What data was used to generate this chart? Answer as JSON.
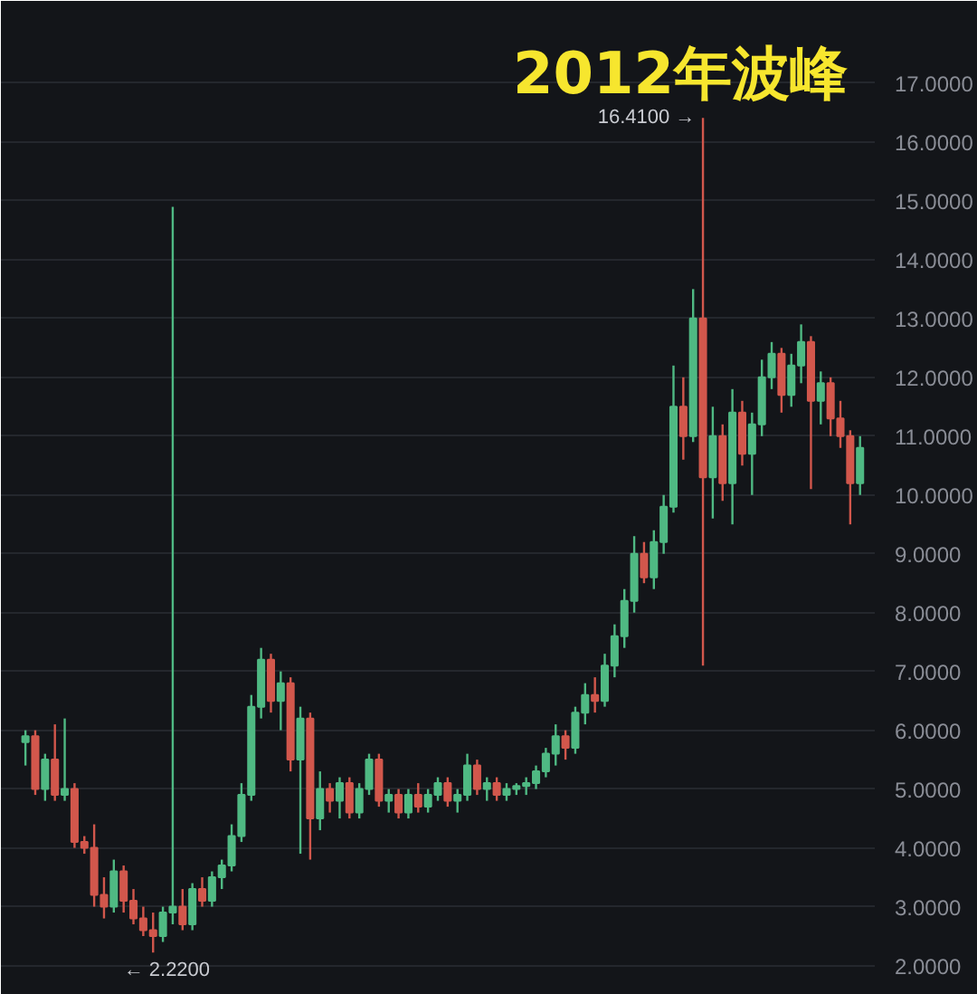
{
  "chart_data": {
    "type": "candlestick",
    "title": "2012年波峰",
    "categories": [
      null,
      null,
      null,
      null,
      null,
      null,
      null,
      null,
      null,
      null,
      null,
      null,
      null,
      null,
      null,
      null,
      null,
      null,
      null,
      null,
      null,
      null,
      null,
      null,
      null,
      null,
      null,
      null,
      null,
      null,
      null,
      null,
      null,
      null,
      null,
      null,
      null,
      null,
      null,
      null,
      null,
      null,
      null,
      null,
      null,
      null,
      null,
      null,
      null,
      null,
      null,
      null,
      null,
      null,
      null,
      null,
      null,
      null,
      null,
      null,
      null,
      null,
      null,
      null,
      null,
      null,
      null,
      null,
      null,
      null,
      null,
      null,
      null,
      null,
      null,
      null,
      null,
      null,
      null,
      null,
      null,
      null,
      null,
      null,
      null,
      null
    ],
    "ohlc": [
      [
        5.8,
        6.0,
        5.4,
        5.9
      ],
      [
        5.9,
        6.0,
        4.9,
        5.0
      ],
      [
        5.0,
        5.6,
        4.8,
        5.5
      ],
      [
        5.5,
        6.1,
        4.8,
        4.9
      ],
      [
        4.9,
        6.2,
        4.8,
        5.0
      ],
      [
        5.0,
        5.1,
        4.0,
        4.1
      ],
      [
        4.1,
        4.2,
        3.9,
        4.0
      ],
      [
        4.0,
        4.4,
        3.0,
        3.2
      ],
      [
        3.2,
        3.5,
        2.8,
        3.0
      ],
      [
        3.0,
        3.8,
        2.9,
        3.6
      ],
      [
        3.6,
        3.7,
        2.9,
        3.1
      ],
      [
        3.1,
        3.3,
        2.7,
        2.8
      ],
      [
        2.8,
        3.0,
        2.5,
        2.6
      ],
      [
        2.6,
        2.9,
        2.22,
        2.5
      ],
      [
        2.5,
        3.0,
        2.4,
        2.9
      ],
      [
        2.9,
        14.9,
        2.7,
        3.0
      ],
      [
        3.0,
        3.3,
        2.6,
        2.7
      ],
      [
        2.7,
        3.4,
        2.6,
        3.3
      ],
      [
        3.3,
        3.5,
        3.0,
        3.1
      ],
      [
        3.1,
        3.6,
        3.0,
        3.5
      ],
      [
        3.5,
        3.8,
        3.3,
        3.7
      ],
      [
        3.7,
        4.4,
        3.6,
        4.2
      ],
      [
        4.2,
        5.1,
        4.1,
        4.9
      ],
      [
        4.9,
        6.6,
        4.8,
        6.4
      ],
      [
        6.4,
        7.4,
        6.2,
        7.2
      ],
      [
        7.2,
        7.3,
        6.3,
        6.5
      ],
      [
        6.5,
        7.0,
        6.0,
        6.8
      ],
      [
        6.8,
        6.9,
        5.3,
        5.5
      ],
      [
        5.5,
        6.4,
        3.9,
        6.2
      ],
      [
        6.2,
        6.3,
        3.8,
        4.5
      ],
      [
        4.5,
        5.3,
        4.3,
        5.0
      ],
      [
        5.0,
        5.1,
        4.6,
        4.8
      ],
      [
        4.8,
        5.2,
        4.5,
        5.1
      ],
      [
        5.1,
        5.2,
        4.5,
        4.6
      ],
      [
        4.6,
        5.1,
        4.5,
        5.0
      ],
      [
        5.0,
        5.6,
        4.9,
        5.5
      ],
      [
        5.5,
        5.6,
        4.7,
        4.8
      ],
      [
        4.8,
        5.0,
        4.6,
        4.9
      ],
      [
        4.9,
        5.0,
        4.5,
        4.6
      ],
      [
        4.6,
        5.0,
        4.5,
        4.9
      ],
      [
        4.9,
        5.1,
        4.6,
        4.7
      ],
      [
        4.7,
        5.0,
        4.6,
        4.9
      ],
      [
        4.9,
        5.2,
        4.8,
        5.1
      ],
      [
        5.1,
        5.2,
        4.7,
        4.8
      ],
      [
        4.8,
        5.0,
        4.6,
        4.9
      ],
      [
        4.9,
        5.6,
        4.8,
        5.4
      ],
      [
        5.4,
        5.5,
        4.9,
        5.0
      ],
      [
        5.0,
        5.2,
        4.8,
        5.1
      ],
      [
        5.1,
        5.2,
        4.8,
        4.9
      ],
      [
        4.9,
        5.1,
        4.8,
        5.0
      ],
      [
        5.0,
        5.1,
        4.9,
        5.05
      ],
      [
        5.05,
        5.2,
        4.9,
        5.1
      ],
      [
        5.1,
        5.4,
        5.0,
        5.3
      ],
      [
        5.3,
        5.7,
        5.2,
        5.6
      ],
      [
        5.6,
        6.1,
        5.4,
        5.9
      ],
      [
        5.9,
        6.0,
        5.5,
        5.7
      ],
      [
        5.7,
        6.4,
        5.6,
        6.3
      ],
      [
        6.3,
        6.8,
        6.1,
        6.6
      ],
      [
        6.6,
        6.9,
        6.3,
        6.5
      ],
      [
        6.5,
        7.3,
        6.4,
        7.1
      ],
      [
        7.1,
        7.8,
        6.9,
        7.6
      ],
      [
        7.6,
        8.4,
        7.4,
        8.2
      ],
      [
        8.2,
        9.3,
        8.0,
        9.0
      ],
      [
        9.0,
        9.2,
        8.5,
        8.6
      ],
      [
        8.6,
        9.4,
        8.4,
        9.2
      ],
      [
        9.2,
        10.0,
        9.0,
        9.8
      ],
      [
        9.8,
        12.2,
        9.7,
        11.5
      ],
      [
        11.5,
        12.0,
        10.6,
        11.0
      ],
      [
        11.0,
        13.5,
        10.9,
        13.0
      ],
      [
        13.0,
        16.41,
        7.1,
        10.3
      ],
      [
        10.3,
        11.5,
        9.6,
        11.0
      ],
      [
        11.0,
        11.2,
        9.9,
        10.2
      ],
      [
        10.2,
        11.8,
        9.5,
        11.4
      ],
      [
        11.4,
        11.6,
        10.5,
        10.7
      ],
      [
        10.7,
        11.4,
        10.0,
        11.2
      ],
      [
        11.2,
        12.3,
        11.0,
        12.0
      ],
      [
        12.0,
        12.6,
        11.8,
        12.4
      ],
      [
        12.4,
        12.5,
        11.4,
        11.7
      ],
      [
        11.7,
        12.4,
        11.5,
        12.2
      ],
      [
        12.2,
        12.9,
        11.9,
        12.6
      ],
      [
        12.6,
        12.7,
        10.1,
        11.6
      ],
      [
        11.6,
        12.1,
        11.2,
        11.9
      ],
      [
        11.9,
        12.0,
        11.0,
        11.3
      ],
      [
        11.3,
        11.6,
        10.8,
        11.0
      ],
      [
        11.0,
        11.1,
        9.5,
        10.2
      ],
      [
        10.2,
        11.0,
        10.0,
        10.8
      ]
    ],
    "colors": [
      "#4fb983",
      "#d2574c",
      "#4fb983",
      "#d2574c",
      "#4fb983",
      "#d2574c",
      "#d2574c",
      "#d2574c",
      "#d2574c",
      "#4fb983",
      "#d2574c",
      "#d2574c",
      "#d2574c",
      "#d2574c",
      "#4fb983",
      "#4fb983",
      "#d2574c",
      "#4fb983",
      "#d2574c",
      "#4fb983",
      "#4fb983",
      "#4fb983",
      "#4fb983",
      "#4fb983",
      "#4fb983",
      "#d2574c",
      "#4fb983",
      "#d2574c",
      "#4fb983",
      "#d2574c",
      "#4fb983",
      "#d2574c",
      "#4fb983",
      "#d2574c",
      "#4fb983",
      "#4fb983",
      "#d2574c",
      "#4fb983",
      "#d2574c",
      "#4fb983",
      "#d2574c",
      "#4fb983",
      "#4fb983",
      "#d2574c",
      "#4fb983",
      "#4fb983",
      "#d2574c",
      "#4fb983",
      "#d2574c",
      "#4fb983",
      "#4fb983",
      "#4fb983",
      "#4fb983",
      "#4fb983",
      "#4fb983",
      "#d2574c",
      "#4fb983",
      "#4fb983",
      "#d2574c",
      "#4fb983",
      "#4fb983",
      "#4fb983",
      "#4fb983",
      "#d2574c",
      "#4fb983",
      "#4fb983",
      "#4fb983",
      "#d2574c",
      "#4fb983",
      "#d2574c",
      "#4fb983",
      "#d2574c",
      "#4fb983",
      "#d2574c",
      "#4fb983",
      "#4fb983",
      "#4fb983",
      "#d2574c",
      "#4fb983",
      "#4fb983",
      "#d2574c",
      "#4fb983",
      "#d2574c",
      "#d2574c",
      "#d2574c",
      "#4fb983"
    ],
    "ylim": [
      1.5,
      18.4
    ],
    "yticks": [
      {
        "value": 2,
        "label": "2.0000"
      },
      {
        "value": 3,
        "label": "3.0000"
      },
      {
        "value": 4,
        "label": "4.0000"
      },
      {
        "value": 5,
        "label": "5.0000"
      },
      {
        "value": 6,
        "label": "6.0000"
      },
      {
        "value": 7,
        "label": "7.0000"
      },
      {
        "value": 8,
        "label": "8.0000"
      },
      {
        "value": 9,
        "label": "9.0000"
      },
      {
        "value": 10,
        "label": "10.0000"
      },
      {
        "value": 11,
        "label": "11.0000"
      },
      {
        "value": 12,
        "label": "12.0000"
      },
      {
        "value": 13,
        "label": "13.0000"
      },
      {
        "value": 14,
        "label": "14.0000"
      },
      {
        "value": 15,
        "label": "15.0000"
      },
      {
        "value": 16,
        "label": "16.0000"
      },
      {
        "value": 17,
        "label": "17.0000"
      }
    ],
    "annotations": [
      "16.4100 →",
      "← 2.2200"
    ],
    "grid": "y",
    "tick_labels": "y"
  }
}
